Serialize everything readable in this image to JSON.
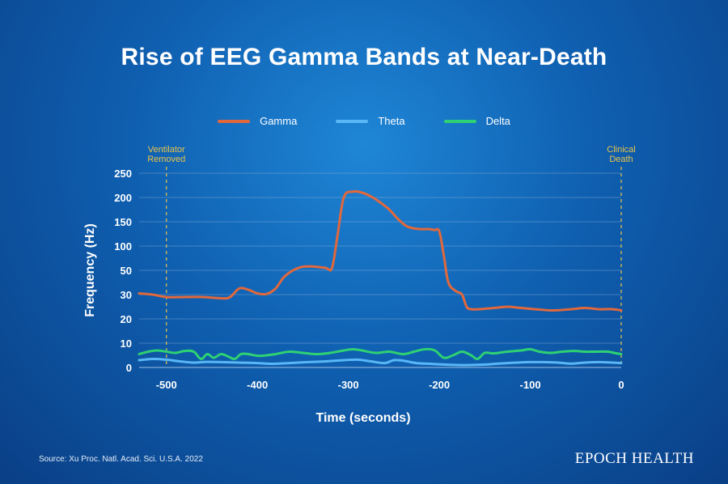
{
  "title": "Rise of EEG Gamma Bands at Near-Death",
  "source": "Source: Xu Proc. Natl. Acad. Sci. U.S.A. 2022",
  "brand": "EPOCH HEALTH",
  "colors": {
    "gamma": "#e0683c",
    "theta": "#59b7f5",
    "delta": "#2ed173",
    "annotation": "#e8c34a",
    "grid": "#8fb4dc"
  },
  "chart_data": {
    "type": "line",
    "title": "Rise of EEG Gamma Bands at Near-Death",
    "xlabel": "Time (seconds)",
    "ylabel": "Frequency (Hz)",
    "xlim": [
      -530,
      0
    ],
    "x_ticks": [
      -500,
      -400,
      -300,
      -200,
      -100,
      0
    ],
    "y_ticks": [
      0,
      10,
      20,
      30,
      50,
      100,
      150,
      200,
      250
    ],
    "y_scale": "piecewise: 0-30 linear, 30-250 compressed",
    "grid": true,
    "legend_position": "top",
    "annotations": [
      {
        "label_line1": "Ventilator",
        "label_line2": "Removed",
        "x": -500
      },
      {
        "label_line1": "Clinical",
        "label_line2": "Death",
        "x": 0
      }
    ],
    "series": [
      {
        "name": "Gamma",
        "x": [
          -530,
          -515,
          -500,
          -480,
          -460,
          -440,
          -430,
          -420,
          -410,
          -400,
          -390,
          -380,
          -370,
          -355,
          -340,
          -325,
          -318,
          -312,
          -305,
          -295,
          -285,
          -275,
          -265,
          -255,
          -245,
          -235,
          -222,
          -212,
          -205,
          -200,
          -195,
          -190,
          -182,
          -175,
          -170,
          -165,
          -155,
          -140,
          -125,
          -110,
          -95,
          -75,
          -55,
          -40,
          -25,
          -10,
          0
        ],
        "y": [
          31,
          30,
          29,
          29,
          29,
          28.5,
          29,
          35,
          34,
          31,
          30.5,
          35,
          45,
          55,
          58,
          55,
          55,
          120,
          200,
          212,
          210,
          202,
          190,
          175,
          155,
          140,
          135,
          135,
          133,
          130,
          80,
          40,
          33,
          30,
          25,
          24,
          24,
          24.5,
          25,
          24.5,
          24,
          23.5,
          24,
          24.5,
          24,
          24,
          23.5
        ]
      },
      {
        "name": "Theta",
        "x": [
          -530,
          -515,
          -500,
          -485,
          -470,
          -455,
          -440,
          -420,
          -400,
          -385,
          -365,
          -345,
          -325,
          -305,
          -290,
          -275,
          -260,
          -250,
          -240,
          -225,
          -210,
          -195,
          -180,
          -165,
          -150,
          -135,
          -115,
          -100,
          -85,
          -70,
          -55,
          -40,
          -25,
          -10,
          0
        ],
        "y": [
          3,
          3.5,
          3.2,
          2.5,
          2,
          2.3,
          2.2,
          2,
          1.8,
          1.5,
          1.8,
          2.2,
          2.5,
          3,
          3.2,
          2.5,
          1.8,
          3,
          2.8,
          1.8,
          1.5,
          1.2,
          1,
          1,
          1.2,
          1.6,
          2,
          2.2,
          2.2,
          2,
          1.6,
          2,
          2.2,
          2,
          1.8
        ]
      },
      {
        "name": "Delta",
        "x": [
          -530,
          -520,
          -510,
          -500,
          -490,
          -480,
          -470,
          -462,
          -455,
          -448,
          -440,
          -432,
          -425,
          -418,
          -410,
          -400,
          -390,
          -380,
          -365,
          -350,
          -335,
          -320,
          -305,
          -295,
          -285,
          -270,
          -255,
          -240,
          -228,
          -216,
          -205,
          -195,
          -185,
          -175,
          -165,
          -158,
          -150,
          -140,
          -125,
          -110,
          -100,
          -90,
          -78,
          -65,
          -52,
          -40,
          -28,
          -15,
          -5,
          0
        ],
        "y": [
          5.5,
          6.5,
          7,
          6.5,
          6,
          6.8,
          6.5,
          3.5,
          5.5,
          4,
          5.5,
          4.5,
          3.5,
          5.5,
          5.5,
          4.8,
          5,
          5.5,
          6.5,
          6,
          5.5,
          6,
          7,
          7.5,
          7,
          6,
          6.5,
          5.5,
          6.5,
          7.5,
          7,
          4,
          5,
          6.5,
          5,
          3.5,
          6,
          5.8,
          6.5,
          7,
          7.5,
          6.5,
          6,
          6.5,
          6.8,
          6.5,
          6.5,
          6.5,
          5.8,
          5.5
        ]
      }
    ]
  }
}
